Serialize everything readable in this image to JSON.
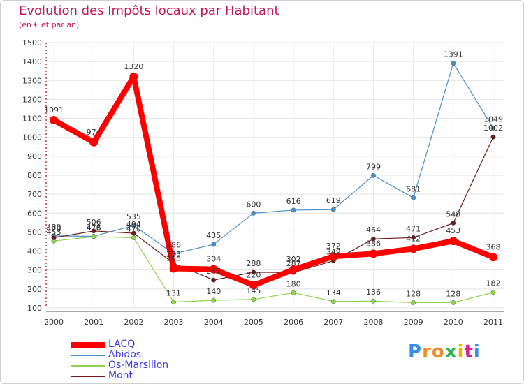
{
  "chart_data": {
    "type": "line",
    "title": "Evolution des Impôts locaux par Habitant",
    "subtitle": "(en € et par an)",
    "xlabel": "",
    "ylabel": "",
    "ylim": [
      100,
      1500
    ],
    "yticks": [
      100,
      200,
      300,
      400,
      500,
      600,
      700,
      800,
      900,
      1000,
      1100,
      1200,
      1300,
      1400,
      1500
    ],
    "grid": true,
    "legend_position": "bottom-left",
    "categories": [
      "2000",
      "2001",
      "2002",
      "2003",
      "2004",
      "2005",
      "2006",
      "2007",
      "2008",
      "2009",
      "2010",
      "2011"
    ],
    "series": [
      {
        "name": "LACQ",
        "color": "#ff0000",
        "values": [
          1091,
          974,
          1320,
          308,
          304,
          220,
          302,
          372,
          386,
          412,
          453,
          368
        ]
      },
      {
        "name": "Abidos",
        "color": "#4a90c8",
        "values": [
          480,
          478,
          535,
          386,
          435,
          600,
          616,
          619,
          799,
          681,
          1391,
          1049
        ]
      },
      {
        "name": "Os-Marsillon",
        "color": "#8fd44f",
        "values": [
          453,
          476,
          470,
          131,
          140,
          145,
          180,
          134,
          136,
          128,
          128,
          182
        ]
      },
      {
        "name": "Mont",
        "color": "#6b1a1a",
        "values": [
          470,
          506,
          494,
          335,
          247,
          288,
          287,
          349,
          464,
          471,
          548,
          1002
        ]
      }
    ]
  },
  "brand": {
    "name": "Proxiti"
  }
}
